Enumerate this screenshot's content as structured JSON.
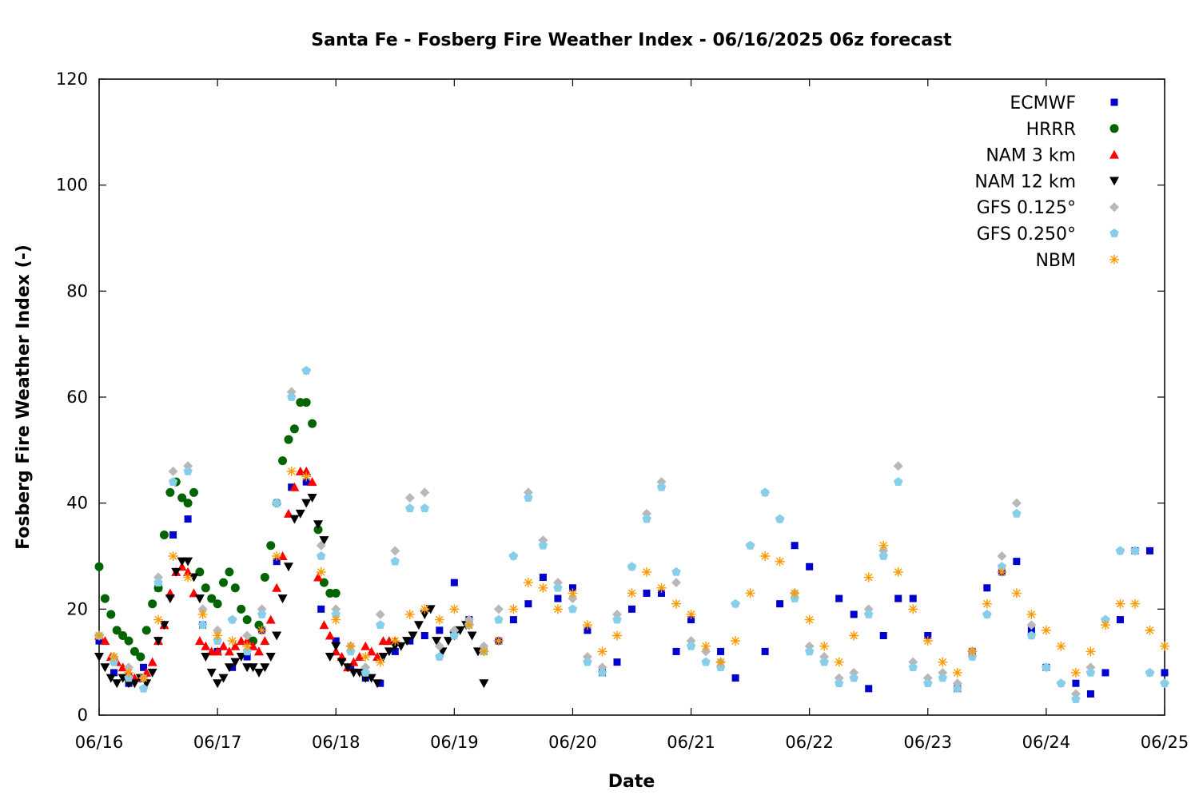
{
  "chart_data": {
    "type": "scatter",
    "title": "Santa Fe - Fosberg Fire Weather Index - 06/16/2025 06z forecast",
    "xlabel": "Date",
    "ylabel": "Fosberg Fire Weather Index (-)",
    "x_unit": "days",
    "xlim": [
      "06/16",
      "06/25"
    ],
    "ylim": [
      0,
      120
    ],
    "x_ticks": [
      "06/16",
      "06/17",
      "06/18",
      "06/19",
      "06/20",
      "06/21",
      "06/22",
      "06/23",
      "06/24",
      "06/25"
    ],
    "y_ticks": [
      0,
      20,
      40,
      60,
      80,
      100,
      120
    ],
    "grid": false,
    "legend_position": "top-right",
    "series": [
      {
        "name": "ECMWF",
        "marker": "square",
        "color": "#0000cc",
        "x": [
          0.0,
          0.125,
          0.25,
          0.375,
          0.5,
          0.625,
          0.75,
          0.875,
          1.0,
          1.125,
          1.25,
          1.375,
          1.5,
          1.625,
          1.75,
          1.875,
          2.0,
          2.125,
          2.25,
          2.375,
          2.5,
          2.625,
          2.75,
          2.875,
          3.0,
          3.125,
          3.25,
          3.375,
          3.5,
          3.625,
          3.75,
          3.875,
          4.0,
          4.125,
          4.25,
          4.375,
          4.5,
          4.625,
          4.75,
          4.875,
          5.0,
          5.25,
          5.375,
          5.625,
          5.75,
          5.875,
          6.0,
          6.25,
          6.375,
          6.5,
          6.625,
          6.75,
          6.875,
          7.0,
          7.25,
          7.375,
          7.5,
          7.625,
          7.75,
          7.875,
          8.0,
          8.25,
          8.375,
          8.5,
          8.625,
          8.75,
          8.875,
          9.0
        ],
        "y": [
          14,
          8,
          6,
          9,
          24,
          34,
          37,
          17,
          12,
          9,
          11,
          16,
          29,
          43,
          44,
          20,
          14,
          9,
          7,
          6,
          12,
          14,
          15,
          16,
          25,
          18,
          12,
          14,
          18,
          21,
          26,
          22,
          24,
          16,
          8,
          10,
          20,
          23,
          23,
          12,
          18,
          12,
          7,
          12,
          21,
          32,
          28,
          22,
          19,
          5,
          15,
          22,
          22,
          15,
          5,
          12,
          24,
          27,
          29,
          16,
          9,
          6,
          4,
          8,
          18,
          31,
          31,
          8
        ]
      },
      {
        "name": "HRRR",
        "marker": "circle",
        "color": "#006400",
        "x": [
          0.0,
          0.05,
          0.1,
          0.15,
          0.2,
          0.25,
          0.3,
          0.35,
          0.4,
          0.45,
          0.5,
          0.55,
          0.6,
          0.65,
          0.7,
          0.75,
          0.8,
          0.85,
          0.9,
          0.95,
          1.0,
          1.05,
          1.1,
          1.15,
          1.2,
          1.25,
          1.3,
          1.35,
          1.4,
          1.45,
          1.5,
          1.55,
          1.6,
          1.65,
          1.7,
          1.75,
          1.8,
          1.85,
          1.9,
          1.95,
          2.0
        ],
        "y": [
          28,
          22,
          19,
          16,
          15,
          14,
          12,
          11,
          16,
          21,
          24,
          34,
          42,
          44,
          41,
          40,
          42,
          27,
          24,
          22,
          21,
          25,
          27,
          24,
          20,
          18,
          14,
          17,
          26,
          32,
          40,
          48,
          52,
          54,
          59,
          59,
          55,
          35,
          25,
          23,
          23
        ]
      },
      {
        "name": "NAM 3 km",
        "marker": "triangle-up",
        "color": "#ff0000",
        "x": [
          0.0,
          0.05,
          0.1,
          0.15,
          0.2,
          0.25,
          0.3,
          0.35,
          0.4,
          0.45,
          0.5,
          0.55,
          0.6,
          0.65,
          0.7,
          0.75,
          0.8,
          0.85,
          0.9,
          0.95,
          1.0,
          1.05,
          1.1,
          1.15,
          1.2,
          1.25,
          1.3,
          1.35,
          1.4,
          1.45,
          1.5,
          1.55,
          1.6,
          1.65,
          1.7,
          1.75,
          1.8,
          1.85,
          1.9,
          1.95,
          2.0,
          2.05,
          2.1,
          2.15,
          2.2,
          2.25,
          2.3,
          2.35,
          2.4,
          2.45,
          2.5
        ],
        "y": [
          15,
          14,
          11,
          10,
          9,
          8,
          7,
          7,
          8,
          10,
          14,
          17,
          23,
          27,
          28,
          27,
          23,
          14,
          13,
          12,
          12,
          13,
          12,
          13,
          14,
          14,
          13,
          12,
          14,
          18,
          24,
          30,
          38,
          43,
          46,
          46,
          44,
          26,
          17,
          15,
          12,
          11,
          9,
          10,
          11,
          13,
          12,
          11,
          14,
          14,
          14
        ]
      },
      {
        "name": "NAM 12 km",
        "marker": "triangle-down",
        "color": "#000000",
        "x": [
          0.0,
          0.05,
          0.1,
          0.15,
          0.2,
          0.25,
          0.3,
          0.35,
          0.4,
          0.45,
          0.5,
          0.55,
          0.6,
          0.65,
          0.7,
          0.75,
          0.8,
          0.85,
          0.9,
          0.95,
          1.0,
          1.05,
          1.1,
          1.15,
          1.2,
          1.25,
          1.3,
          1.35,
          1.4,
          1.45,
          1.5,
          1.55,
          1.6,
          1.65,
          1.7,
          1.75,
          1.8,
          1.85,
          1.9,
          1.95,
          2.0,
          2.05,
          2.1,
          2.15,
          2.2,
          2.25,
          2.3,
          2.35,
          2.4,
          2.45,
          2.5,
          2.55,
          2.6,
          2.65,
          2.7,
          2.75,
          2.8,
          2.85,
          2.9,
          2.95,
          3.0,
          3.05,
          3.1,
          3.15,
          3.2,
          3.25
        ],
        "y": [
          11,
          9,
          7,
          6,
          7,
          6,
          6,
          7,
          6,
          8,
          14,
          17,
          22,
          27,
          29,
          29,
          26,
          22,
          11,
          8,
          6,
          7,
          9,
          10,
          11,
          9,
          9,
          8,
          9,
          11,
          15,
          22,
          28,
          37,
          38,
          40,
          41,
          36,
          33,
          11,
          13,
          10,
          9,
          8,
          8,
          7,
          7,
          6,
          11,
          12,
          13,
          13,
          14,
          15,
          17,
          19,
          20,
          14,
          12,
          14,
          15,
          16,
          17,
          15,
          12,
          6
        ]
      },
      {
        "name": "GFS 0.125°",
        "marker": "diamond",
        "color": "#b8b8b8",
        "x": [
          0.0,
          0.125,
          0.25,
          0.375,
          0.5,
          0.625,
          0.75,
          0.875,
          1.0,
          1.125,
          1.25,
          1.375,
          1.5,
          1.625,
          1.75,
          1.875,
          2.0,
          2.125,
          2.25,
          2.375,
          2.5,
          2.625,
          2.75,
          2.875,
          3.0,
          3.125,
          3.25,
          3.375,
          3.5,
          3.625,
          3.75,
          3.875,
          4.0,
          4.125,
          4.25,
          4.375,
          4.5,
          4.625,
          4.75,
          4.875,
          5.0,
          5.125,
          5.25,
          5.375,
          5.5,
          5.625,
          5.75,
          5.875,
          6.0,
          6.125,
          6.25,
          6.375,
          6.5,
          6.625,
          6.75,
          6.875,
          7.0,
          7.125,
          7.25,
          7.375,
          7.5,
          7.625,
          7.75,
          7.875,
          8.0,
          8.125,
          8.25,
          8.375,
          8.5,
          8.625,
          8.75,
          8.875,
          9.0
        ],
        "y": [
          15,
          11,
          9,
          7,
          26,
          46,
          47,
          20,
          16,
          18,
          15,
          20,
          40,
          61,
          65,
          32,
          20,
          13,
          9,
          19,
          31,
          41,
          42,
          13,
          16,
          18,
          13,
          20,
          30,
          42,
          33,
          25,
          22,
          11,
          9,
          19,
          28,
          38,
          44,
          25,
          14,
          12,
          10,
          21,
          32,
          42,
          37,
          23,
          13,
          11,
          7,
          8,
          20,
          31,
          47,
          10,
          7,
          8,
          6,
          12,
          19,
          30,
          40,
          17,
          9,
          6,
          4,
          9,
          18,
          31,
          31,
          8,
          6
        ]
      },
      {
        "name": "GFS 0.250°",
        "marker": "pentagon",
        "color": "#87ceeb",
        "x": [
          0.0,
          0.125,
          0.25,
          0.375,
          0.5,
          0.625,
          0.75,
          0.875,
          1.0,
          1.125,
          1.25,
          1.375,
          1.5,
          1.625,
          1.75,
          1.875,
          2.0,
          2.125,
          2.25,
          2.375,
          2.5,
          2.625,
          2.75,
          2.875,
          3.0,
          3.125,
          3.25,
          3.375,
          3.5,
          3.625,
          3.75,
          3.875,
          4.0,
          4.125,
          4.25,
          4.375,
          4.5,
          4.625,
          4.75,
          4.875,
          5.0,
          5.125,
          5.25,
          5.375,
          5.5,
          5.625,
          5.75,
          5.875,
          6.0,
          6.125,
          6.25,
          6.375,
          6.5,
          6.625,
          6.75,
          6.875,
          7.0,
          7.125,
          7.25,
          7.375,
          7.5,
          7.625,
          7.75,
          7.875,
          8.0,
          8.125,
          8.25,
          8.375,
          8.5,
          8.625,
          8.75,
          8.875,
          9.0
        ],
        "y": [
          15,
          10,
          7,
          5,
          25,
          44,
          46,
          17,
          14,
          18,
          12,
          19,
          40,
          60,
          65,
          30,
          19,
          12,
          8,
          17,
          29,
          39,
          39,
          11,
          15,
          17,
          12,
          18,
          30,
          41,
          32,
          24,
          20,
          10,
          8,
          18,
          28,
          37,
          43,
          27,
          13,
          10,
          9,
          21,
          32,
          42,
          37,
          22,
          12,
          10,
          6,
          7,
          19,
          30,
          44,
          9,
          6,
          7,
          5,
          11,
          19,
          28,
          38,
          15,
          9,
          6,
          3,
          8,
          18,
          31,
          31,
          8,
          6
        ]
      },
      {
        "name": "NBM",
        "marker": "star",
        "color": "#ff9900",
        "x": [
          0.0,
          0.125,
          0.25,
          0.375,
          0.5,
          0.625,
          0.75,
          0.875,
          1.0,
          1.125,
          1.25,
          1.375,
          1.5,
          1.625,
          1.75,
          1.875,
          2.0,
          2.125,
          2.25,
          2.375,
          2.5,
          2.625,
          2.75,
          2.875,
          3.0,
          3.125,
          3.25,
          3.375,
          3.5,
          3.625,
          3.75,
          3.875,
          4.0,
          4.125,
          4.25,
          4.375,
          4.5,
          4.625,
          4.75,
          4.875,
          5.0,
          5.125,
          5.25,
          5.375,
          5.5,
          5.625,
          5.75,
          5.875,
          6.0,
          6.125,
          6.25,
          6.375,
          6.5,
          6.625,
          6.75,
          6.875,
          7.0,
          7.125,
          7.25,
          7.375,
          7.5,
          7.625,
          7.75,
          7.875,
          8.0,
          8.125,
          8.25,
          8.375,
          8.5,
          8.625,
          8.75,
          8.875,
          9.0
        ],
        "y": [
          15,
          11,
          8,
          7,
          18,
          30,
          26,
          19,
          15,
          14,
          13,
          16,
          30,
          46,
          45,
          27,
          18,
          13,
          11,
          10,
          14,
          19,
          20,
          18,
          20,
          17,
          12,
          14,
          20,
          25,
          24,
          20,
          23,
          17,
          12,
          15,
          23,
          27,
          24,
          21,
          19,
          13,
          10,
          14,
          23,
          30,
          29,
          23,
          18,
          13,
          10,
          15,
          26,
          32,
          27,
          20,
          14,
          10,
          8,
          12,
          21,
          27,
          23,
          19,
          16,
          13,
          8,
          12,
          17,
          21,
          21,
          16,
          13
        ]
      }
    ]
  }
}
